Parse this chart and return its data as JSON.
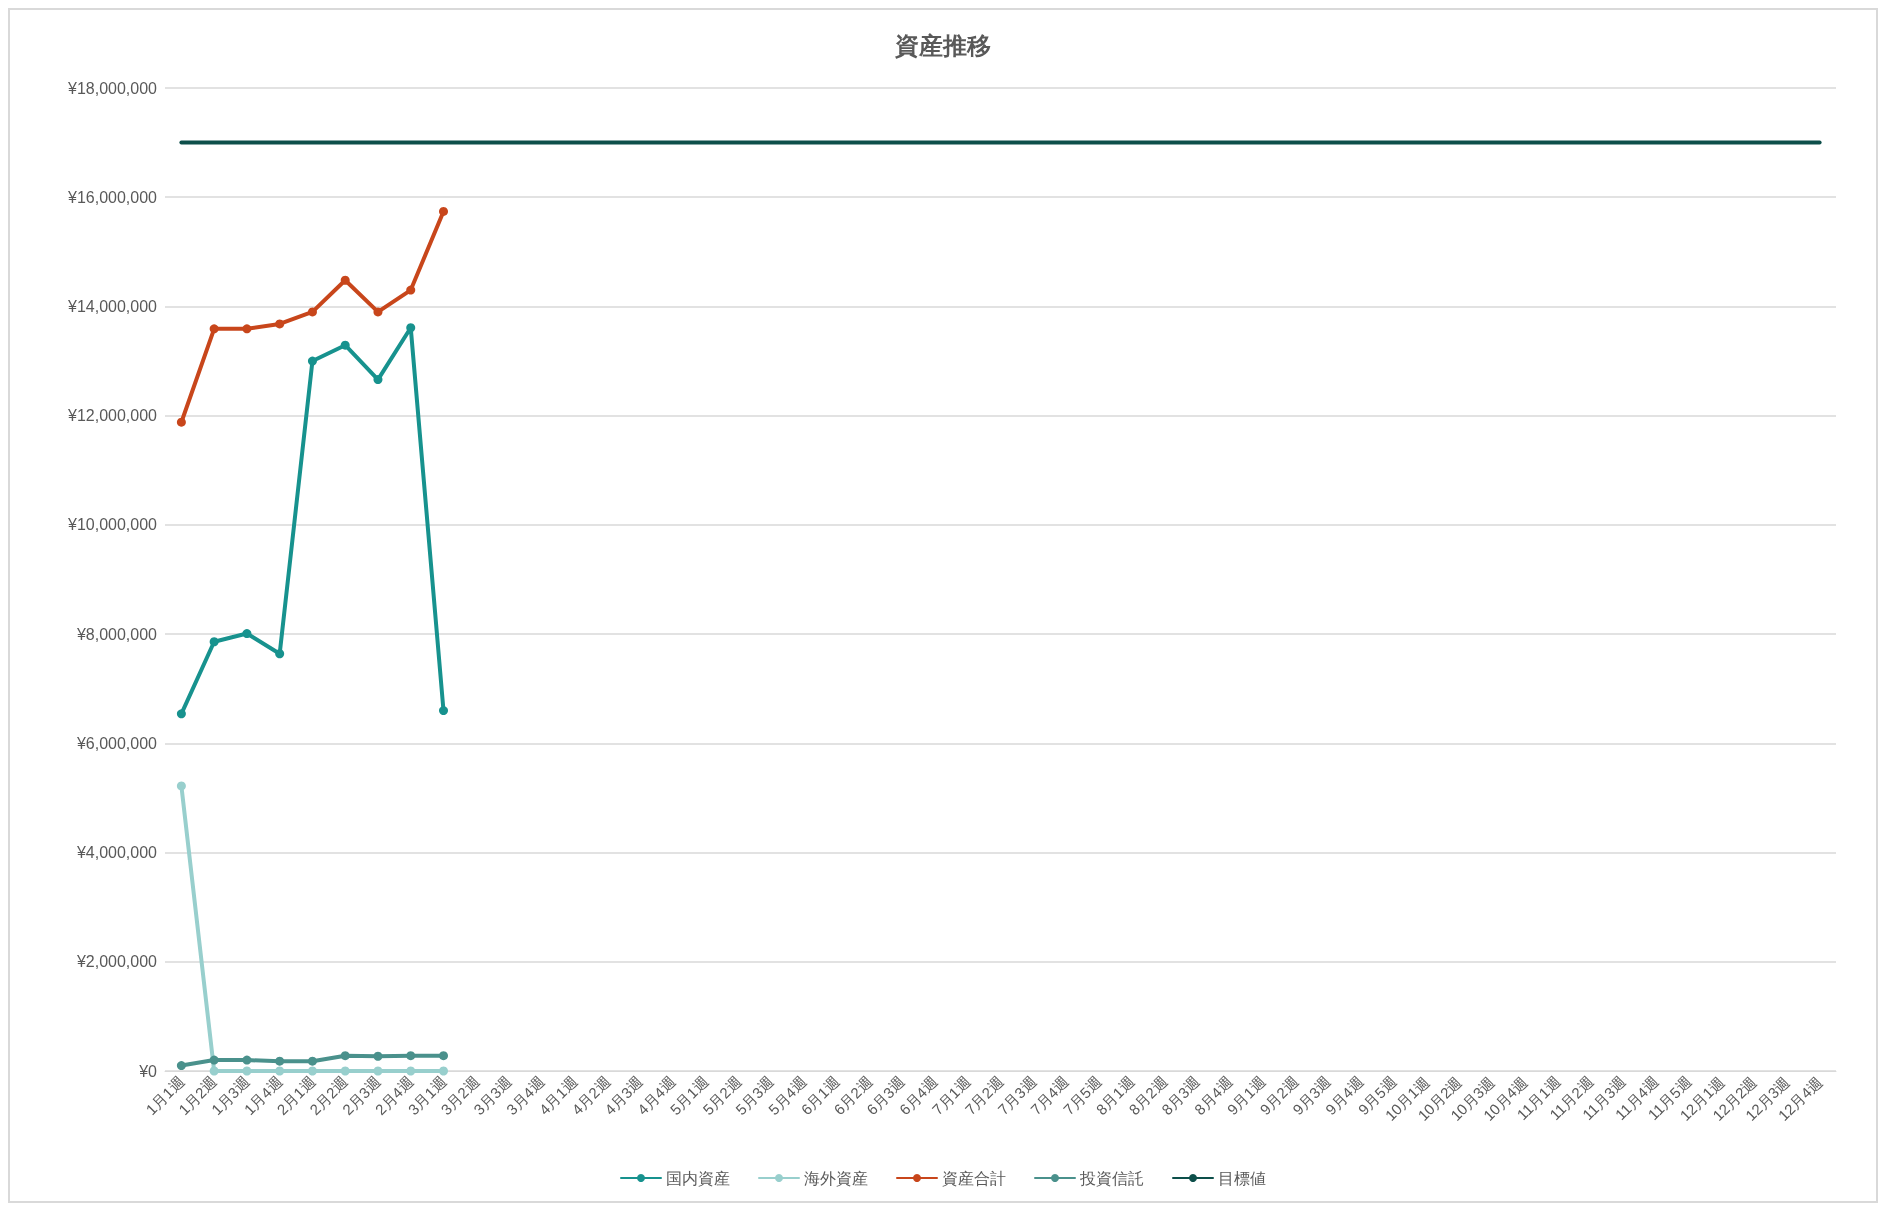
{
  "chart_data": {
    "type": "line",
    "title": "資産推移",
    "categories": [
      "1月1週",
      "1月2週",
      "1月3週",
      "1月4週",
      "2月1週",
      "2月2週",
      "2月3週",
      "2月4週",
      "3月1週",
      "3月2週",
      "3月3週",
      "3月4週",
      "4月1週",
      "4月2週",
      "4月3週",
      "4月4週",
      "5月1週",
      "5月2週",
      "5月3週",
      "5月4週",
      "6月1週",
      "6月2週",
      "6月3週",
      "6月4週",
      "7月1週",
      "7月2週",
      "7月3週",
      "7月4週",
      "7月5週",
      "8月1週",
      "8月2週",
      "8月3週",
      "8月4週",
      "9月1週",
      "9月2週",
      "9月3週",
      "9月4週",
      "9月5週",
      "10月1週",
      "10月2週",
      "10月3週",
      "10月4週",
      "11月1週",
      "11月2週",
      "11月3週",
      "11月4週",
      "11月5週",
      "12月1週",
      "12月2週",
      "12月3週",
      "12月4週"
    ],
    "series": [
      {
        "name": "国内資産",
        "color": "#17928e",
        "marker": "circle",
        "values": [
          6540000,
          7860000,
          8010000,
          7640000,
          13000000,
          13290000,
          12660000,
          13610000,
          6600000,
          null,
          null,
          null,
          null,
          null,
          null,
          null,
          null,
          null,
          null,
          null,
          null,
          null,
          null,
          null,
          null,
          null,
          null,
          null,
          null,
          null,
          null,
          null,
          null,
          null,
          null,
          null,
          null,
          null,
          null,
          null,
          null,
          null,
          null,
          null,
          null,
          null,
          null,
          null,
          null,
          null,
          null
        ]
      },
      {
        "name": "海外資産",
        "color": "#98cfcd",
        "marker": "circle",
        "values": [
          5220000,
          0,
          0,
          0,
          0,
          0,
          0,
          0,
          0,
          null,
          null,
          null,
          null,
          null,
          null,
          null,
          null,
          null,
          null,
          null,
          null,
          null,
          null,
          null,
          null,
          null,
          null,
          null,
          null,
          null,
          null,
          null,
          null,
          null,
          null,
          null,
          null,
          null,
          null,
          null,
          null,
          null,
          null,
          null,
          null,
          null,
          null,
          null,
          null,
          null,
          null
        ]
      },
      {
        "name": "資産合計",
        "color": "#c8461b",
        "marker": "circle",
        "values": [
          11880000,
          13590000,
          13590000,
          13680000,
          13900000,
          14480000,
          13900000,
          14300000,
          15740000,
          null,
          null,
          null,
          null,
          null,
          null,
          null,
          null,
          null,
          null,
          null,
          null,
          null,
          null,
          null,
          null,
          null,
          null,
          null,
          null,
          null,
          null,
          null,
          null,
          null,
          null,
          null,
          null,
          null,
          null,
          null,
          null,
          null,
          null,
          null,
          null,
          null,
          null,
          null,
          null,
          null,
          null
        ]
      },
      {
        "name": "投資信託",
        "color": "#4a918c",
        "marker": "circle",
        "values": [
          100000,
          200000,
          200000,
          180000,
          180000,
          280000,
          270000,
          280000,
          280000,
          null,
          null,
          null,
          null,
          null,
          null,
          null,
          null,
          null,
          null,
          null,
          null,
          null,
          null,
          null,
          null,
          null,
          null,
          null,
          null,
          null,
          null,
          null,
          null,
          null,
          null,
          null,
          null,
          null,
          null,
          null,
          null,
          null,
          null,
          null,
          null,
          null,
          null,
          null,
          null,
          null,
          null
        ]
      },
      {
        "name": "目標値",
        "color": "#0d4f4a",
        "marker": "none",
        "values": [
          17000000,
          17000000,
          17000000,
          17000000,
          17000000,
          17000000,
          17000000,
          17000000,
          17000000,
          17000000,
          17000000,
          17000000,
          17000000,
          17000000,
          17000000,
          17000000,
          17000000,
          17000000,
          17000000,
          17000000,
          17000000,
          17000000,
          17000000,
          17000000,
          17000000,
          17000000,
          17000000,
          17000000,
          17000000,
          17000000,
          17000000,
          17000000,
          17000000,
          17000000,
          17000000,
          17000000,
          17000000,
          17000000,
          17000000,
          17000000,
          17000000,
          17000000,
          17000000,
          17000000,
          17000000,
          17000000,
          17000000,
          17000000,
          17000000,
          17000000,
          17000000
        ]
      }
    ],
    "ylim": [
      0,
      18000000
    ],
    "yticks": [
      {
        "value": 0,
        "label": "¥0"
      },
      {
        "value": 2000000,
        "label": "¥2,000,000"
      },
      {
        "value": 4000000,
        "label": "¥4,000,000"
      },
      {
        "value": 6000000,
        "label": "¥6,000,000"
      },
      {
        "value": 8000000,
        "label": "¥8,000,000"
      },
      {
        "value": 10000000,
        "label": "¥10,000,000"
      },
      {
        "value": 12000000,
        "label": "¥12,000,000"
      },
      {
        "value": 14000000,
        "label": "¥14,000,000"
      },
      {
        "value": 16000000,
        "label": "¥16,000,000"
      },
      {
        "value": 18000000,
        "label": "¥18,000,000"
      }
    ],
    "grid": "y",
    "legend": "bottom"
  }
}
